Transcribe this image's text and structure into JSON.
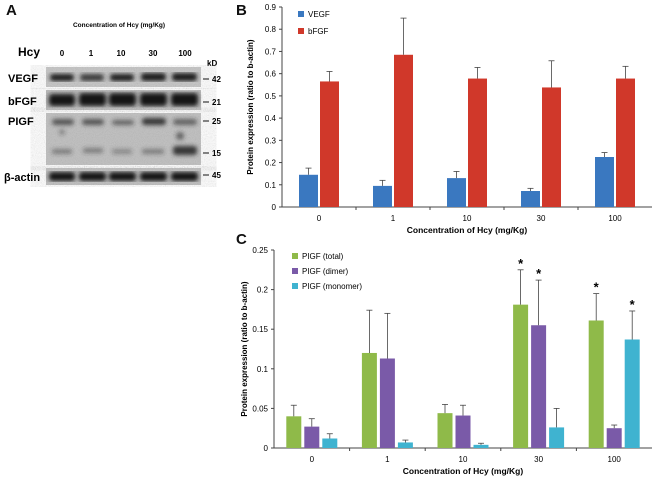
{
  "panels": {
    "a": "A",
    "b": "B",
    "c": "C"
  },
  "blot": {
    "header": "Concentration of Hcy (mg/Kg)",
    "row_label": "Hcy",
    "kd_label": "kD",
    "lanes": [
      "0",
      "1",
      "10",
      "30",
      "100"
    ],
    "proteins": [
      "VEGF",
      "bFGF",
      "PIGF",
      "β-actin"
    ],
    "markers": [
      "42",
      "21",
      "25",
      "15",
      "45"
    ]
  },
  "chart_data": [
    {
      "type": "bar",
      "ylabel": "Protein expression (ratio to b-actin)",
      "xlabel": "Concentration of Hcy (mg/Kg)",
      "categories": [
        "0",
        "1",
        "10",
        "30",
        "100"
      ],
      "ylim": [
        0,
        0.9
      ],
      "yticks": [
        "0",
        "0.1",
        "0.2",
        "0.3",
        "0.4",
        "0.5",
        "0.6",
        "0.7",
        "0.8",
        "0.9"
      ],
      "legend_position": "top-left",
      "series": [
        {
          "name": "VEGF",
          "color": "#3a78c0",
          "values": [
            0.145,
            0.095,
            0.13,
            0.072,
            0.225
          ],
          "errors": [
            0.03,
            0.025,
            0.03,
            0.012,
            0.02
          ]
        },
        {
          "name": "bFGF",
          "color": "#d0382a",
          "values": [
            0.565,
            0.685,
            0.578,
            0.538,
            0.578
          ],
          "errors": [
            0.045,
            0.165,
            0.05,
            0.12,
            0.055
          ]
        }
      ]
    },
    {
      "type": "bar",
      "ylabel": "Protein expression (ratio to b-actin)",
      "xlabel": "Concentration of Hcy (mg/Kg)",
      "categories": [
        "0",
        "1",
        "10",
        "30",
        "100"
      ],
      "ylim": [
        0,
        0.25
      ],
      "yticks": [
        "0",
        "0.05",
        "0.1",
        "0.15",
        "0.2",
        "0.25"
      ],
      "legend_position": "top-left",
      "series": [
        {
          "name": "PIGF (total)",
          "color": "#8fba49",
          "values": [
            0.04,
            0.12,
            0.044,
            0.181,
            0.161
          ],
          "errors": [
            0.014,
            0.054,
            0.011,
            0.044,
            0.034
          ],
          "marks": [
            "",
            "",
            "",
            "*",
            "*"
          ]
        },
        {
          "name": "PIGF (dimer)",
          "color": "#7a5aa8",
          "values": [
            0.027,
            0.113,
            0.041,
            0.155,
            0.025
          ],
          "errors": [
            0.01,
            0.057,
            0.013,
            0.057,
            0.004
          ],
          "marks": [
            "",
            "",
            "",
            "*",
            ""
          ]
        },
        {
          "name": "PIGF (monomer)",
          "color": "#3fb3d0",
          "values": [
            0.012,
            0.007,
            0.004,
            0.026,
            0.137
          ],
          "errors": [
            0.006,
            0.003,
            0.002,
            0.024,
            0.036
          ],
          "marks": [
            "",
            "",
            "",
            "",
            "*"
          ]
        }
      ]
    }
  ]
}
